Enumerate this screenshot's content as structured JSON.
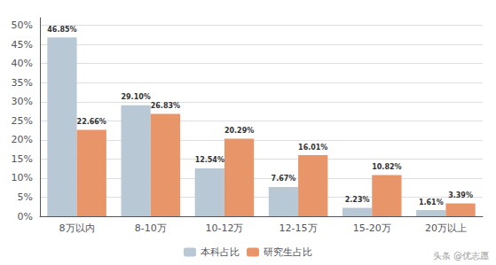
{
  "chart_data": {
    "type": "bar",
    "categories": [
      "8万以内",
      "8-10万",
      "10-12万",
      "12-15万",
      "15-20万",
      "20万以上"
    ],
    "series": [
      {
        "name": "本科占比",
        "color": "#b8c8d4",
        "values": [
          46.85,
          29.1,
          12.54,
          7.67,
          2.23,
          1.61
        ],
        "value_labels": [
          "46.85%",
          "29.10%",
          "12.54%",
          "7.67%",
          "2.23%",
          "1.61%"
        ]
      },
      {
        "name": "研究生占比",
        "color": "#e8956a",
        "values": [
          22.66,
          26.83,
          20.29,
          16.01,
          10.82,
          3.39
        ],
        "value_labels": [
          "22.66%",
          "26.83%",
          "20.29%",
          "16.01%",
          "10.82%",
          "3.39%"
        ]
      }
    ],
    "ylim": [
      0,
      52
    ],
    "yticks": [
      {
        "value": 0,
        "label": "0%"
      },
      {
        "value": 5,
        "label": "5%"
      },
      {
        "value": 10,
        "label": "10%"
      },
      {
        "value": 15,
        "label": "15%"
      },
      {
        "value": 20,
        "label": "20%"
      },
      {
        "value": 25,
        "label": "25%"
      },
      {
        "value": 30,
        "label": "30%"
      },
      {
        "value": 35,
        "label": "35%"
      },
      {
        "value": 40,
        "label": "40%"
      },
      {
        "value": 45,
        "label": "45%"
      },
      {
        "value": 50,
        "label": "50%"
      }
    ],
    "grid": true,
    "legend": "bottom",
    "data_labels": true,
    "annotations": [
      "头条 @优志愿"
    ]
  }
}
